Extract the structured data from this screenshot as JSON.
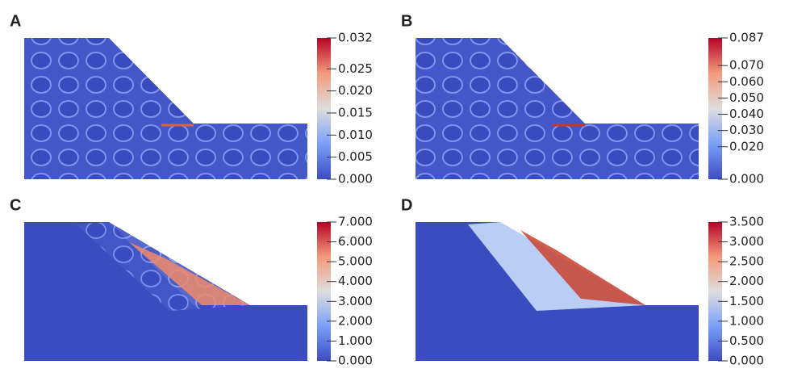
{
  "chart_data": [
    {
      "type": "colormap",
      "title": "A",
      "ylim": [
        0,
        0.032
      ],
      "yticks": [
        {
          "value": 0,
          "label": "0.000"
        },
        {
          "value": 0.005,
          "label": "0.005"
        },
        {
          "value": 0.01,
          "label": "0.010"
        },
        {
          "value": 0.015,
          "label": "0.015"
        },
        {
          "value": 0.02,
          "label": "0.020"
        },
        {
          "value": 0.025,
          "label": "0.025"
        },
        {
          "value": 0.032,
          "label": "0.032"
        }
      ]
    },
    {
      "type": "colormap",
      "title": "B",
      "ylim": [
        0,
        0.087
      ],
      "yticks": [
        {
          "value": 0,
          "label": "0.000"
        },
        {
          "value": 0.02,
          "label": "0.020"
        },
        {
          "value": 0.03,
          "label": "0.030"
        },
        {
          "value": 0.04,
          "label": "0.040"
        },
        {
          "value": 0.05,
          "label": "0.050"
        },
        {
          "value": 0.06,
          "label": "0.060"
        },
        {
          "value": 0.07,
          "label": "0.070"
        },
        {
          "value": 0.087,
          "label": "0.087"
        }
      ]
    },
    {
      "type": "colormap",
      "title": "C",
      "ylim": [
        0,
        7
      ],
      "yticks": [
        {
          "value": 0,
          "label": "0.000"
        },
        {
          "value": 1,
          "label": "1.000"
        },
        {
          "value": 2,
          "label": "2.000"
        },
        {
          "value": 3,
          "label": "3.000"
        },
        {
          "value": 4,
          "label": "4.000"
        },
        {
          "value": 5,
          "label": "5.000"
        },
        {
          "value": 6,
          "label": "6.000"
        },
        {
          "value": 7,
          "label": "7.000"
        }
      ]
    },
    {
      "type": "colormap",
      "title": "D",
      "ylim": [
        0,
        3.5
      ],
      "yticks": [
        {
          "value": 0,
          "label": "0.000"
        },
        {
          "value": 0.5,
          "label": "0.500"
        },
        {
          "value": 1,
          "label": "1.000"
        },
        {
          "value": 1.5,
          "label": "1.500"
        },
        {
          "value": 2,
          "label": "2.000"
        },
        {
          "value": 2.5,
          "label": "2.500"
        },
        {
          "value": 3,
          "label": "3.000"
        },
        {
          "value": 3.5,
          "label": "3.500"
        }
      ]
    }
  ]
}
